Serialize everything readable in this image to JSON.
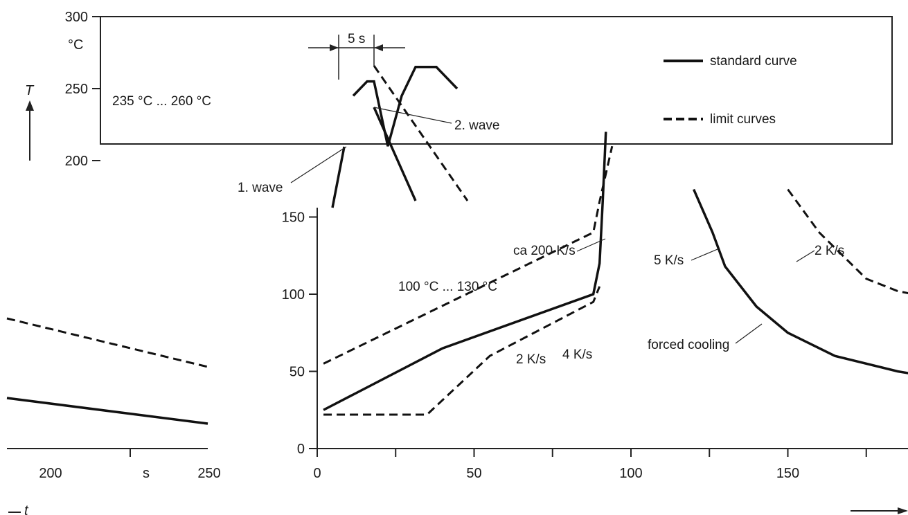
{
  "chart_data": {
    "type": "line",
    "xlabel": "t",
    "ylabel": "T",
    "y_unit": "°C",
    "x_unit": "s",
    "y_ticks": [
      300,
      250,
      200,
      150,
      100,
      50,
      0
    ],
    "x_ticks_main": [
      0,
      50,
      100,
      150
    ],
    "x_ticks_tail": [
      200,
      250
    ],
    "xlim": [
      0,
      250
    ],
    "ylim": [
      0,
      300
    ],
    "legend": [
      {
        "name": "standard curve",
        "style": "solid"
      },
      {
        "name": "limit curves",
        "style": "dashed"
      }
    ],
    "annotations": {
      "peak_range": "235 °C ... 260 °C",
      "preheat_range": "100 °C ... 130 °C",
      "dwell": "5 s",
      "wave1": "1. wave",
      "wave2": "2. wave",
      "ramp_fast": "ca 200 K/s",
      "ramp_2ks": "2 K/s",
      "ramp_4ks": "4 K/s",
      "cool_5ks": "5 K/s",
      "cool_2ks": "2 K/s",
      "forced_cooling": "forced cooling"
    },
    "series": [
      {
        "name": "standard curve",
        "style": "solid",
        "points": [
          [
            2,
            25
          ],
          [
            40,
            65
          ],
          [
            88,
            100
          ],
          [
            90,
            120
          ],
          [
            91,
            160
          ],
          [
            92,
            220
          ],
          [
            3,
            245
          ],
          [
            5,
            255
          ],
          [
            6,
            255
          ],
          [
            8,
            210
          ],
          [
            10,
            245
          ],
          [
            12,
            265
          ],
          [
            15,
            265
          ],
          [
            18,
            250
          ],
          [
            120,
            180
          ],
          [
            126,
            140
          ],
          [
            130,
            118
          ],
          [
            140,
            92
          ],
          [
            150,
            75
          ],
          [
            165,
            60
          ],
          [
            185,
            50
          ],
          [
            220,
            38
          ],
          [
            250,
            33
          ]
        ]
      },
      {
        "name": "limit curve upper",
        "style": "dashed",
        "points": [
          [
            2,
            55
          ],
          [
            88,
            140
          ],
          [
            90,
            160
          ],
          [
            94,
            210
          ],
          [
            18,
            265
          ],
          [
            150,
            180
          ],
          [
            160,
            140
          ],
          [
            175,
            110
          ],
          [
            185,
            102
          ],
          [
            220,
            88
          ],
          [
            250,
            80
          ]
        ]
      },
      {
        "name": "limit curve lower",
        "style": "dashed",
        "points": [
          [
            2,
            22
          ],
          [
            35,
            22
          ],
          [
            55,
            60
          ],
          [
            88,
            95
          ],
          [
            90,
            105
          ]
        ]
      }
    ]
  }
}
